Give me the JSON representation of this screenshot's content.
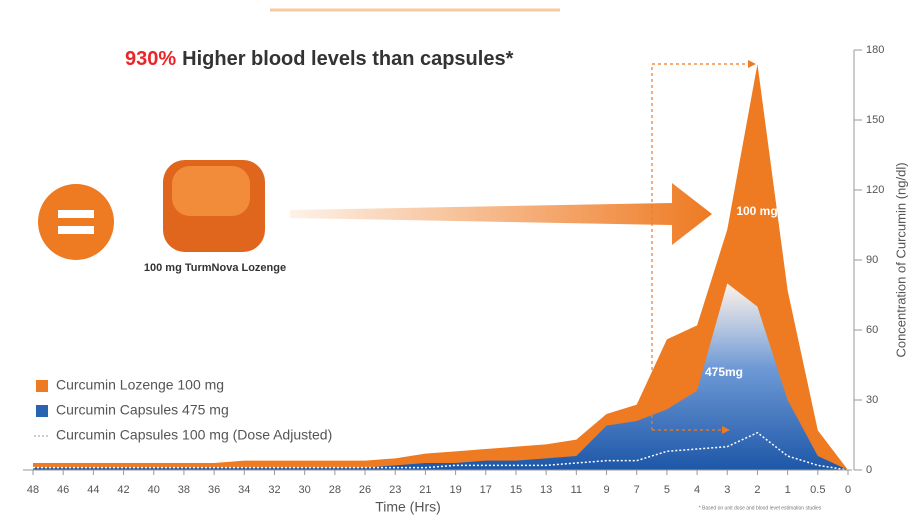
{
  "chart_data": {
    "type": "area",
    "headline": [
      "930%",
      "Higher blood levels than capsules*"
    ],
    "annotations": [
      "100 mg",
      "475mg"
    ],
    "product_label": "100 mg TurmNova Lozenge",
    "xlabel": "Time (Hrs)",
    "ylabel": "Concentration of Curcumin (ng/dl)",
    "footnote": "* Based on unit dose and blood level estimation studies",
    "categories": [
      "48",
      "46",
      "44",
      "42",
      "40",
      "38",
      "36",
      "34",
      "32",
      "30",
      "28",
      "26",
      "23",
      "21",
      "19",
      "17",
      "15",
      "13",
      "11",
      "9",
      "7",
      "5",
      "4",
      "3",
      "2",
      "1",
      "0.5",
      "0"
    ],
    "series": [
      {
        "name": "Curcumin Lozenge 100 mg",
        "color": "#ee7a22",
        "style": "area",
        "values": [
          3,
          3,
          3,
          3,
          3,
          3,
          3,
          4,
          4,
          4,
          4,
          4,
          5,
          7,
          8,
          9,
          10,
          11,
          13,
          24,
          28,
          56,
          62,
          103,
          174,
          77,
          17,
          0
        ]
      },
      {
        "name": "Curcumin Capsules 475 mg",
        "color": "#2a63b0",
        "style": "area",
        "values": [
          1,
          1,
          1,
          1,
          1,
          1,
          1,
          1,
          1,
          1,
          1,
          1,
          2,
          3,
          3,
          4,
          4,
          5,
          6,
          19,
          21,
          26,
          34,
          80,
          70,
          30,
          6,
          0
        ]
      },
      {
        "name": "Curcumin Capsules 100 mg (Dose Adjusted)",
        "color": "#ffffff",
        "style": "dotted",
        "values": [
          1,
          1,
          1,
          1,
          1,
          1,
          1,
          1,
          1,
          1,
          1,
          1,
          1,
          1,
          2,
          2,
          2,
          2,
          3,
          4,
          4,
          8,
          9,
          10,
          16,
          6,
          2,
          0
        ]
      }
    ],
    "ylim": [
      0,
      180
    ],
    "yticks": [
      0,
      30,
      60,
      90,
      120,
      150,
      180
    ]
  }
}
